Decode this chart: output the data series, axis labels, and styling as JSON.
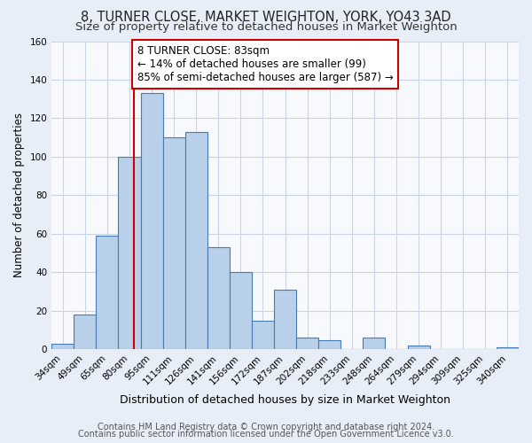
{
  "title": "8, TURNER CLOSE, MARKET WEIGHTON, YORK, YO43 3AD",
  "subtitle": "Size of property relative to detached houses in Market Weighton",
  "xlabel": "Distribution of detached houses by size in Market Weighton",
  "ylabel": "Number of detached properties",
  "bar_labels": [
    "34sqm",
    "49sqm",
    "65sqm",
    "80sqm",
    "95sqm",
    "111sqm",
    "126sqm",
    "141sqm",
    "156sqm",
    "172sqm",
    "187sqm",
    "202sqm",
    "218sqm",
    "233sqm",
    "248sqm",
    "264sqm",
    "279sqm",
    "294sqm",
    "309sqm",
    "325sqm",
    "340sqm"
  ],
  "bar_values": [
    3,
    18,
    59,
    100,
    133,
    110,
    113,
    53,
    40,
    15,
    31,
    6,
    5,
    0,
    6,
    0,
    2,
    0,
    0,
    0,
    1
  ],
  "bar_color": "#b8d0ea",
  "bar_edge_color": "#4a7ab5",
  "annotation_text": "8 TURNER CLOSE: 83sqm\n← 14% of detached houses are smaller (99)\n85% of semi-detached houses are larger (587) →",
  "annotation_box_color": "#ffffff",
  "annotation_box_edge_color": "#cc0000",
  "vline_color": "#cc0000",
  "ylim": [
    0,
    160
  ],
  "yticks": [
    0,
    20,
    40,
    60,
    80,
    100,
    120,
    140,
    160
  ],
  "footer_line1": "Contains HM Land Registry data © Crown copyright and database right 2024.",
  "footer_line2": "Contains public sector information licensed under the Open Government Licence v3.0.",
  "title_fontsize": 10.5,
  "subtitle_fontsize": 9.5,
  "xlabel_fontsize": 9,
  "ylabel_fontsize": 8.5,
  "tick_fontsize": 7.5,
  "annotation_fontsize": 8.5,
  "footer_fontsize": 7,
  "background_color": "#e8eef8",
  "plot_bg_color": "#f7f9fc",
  "grid_color": "#c8d4e8"
}
